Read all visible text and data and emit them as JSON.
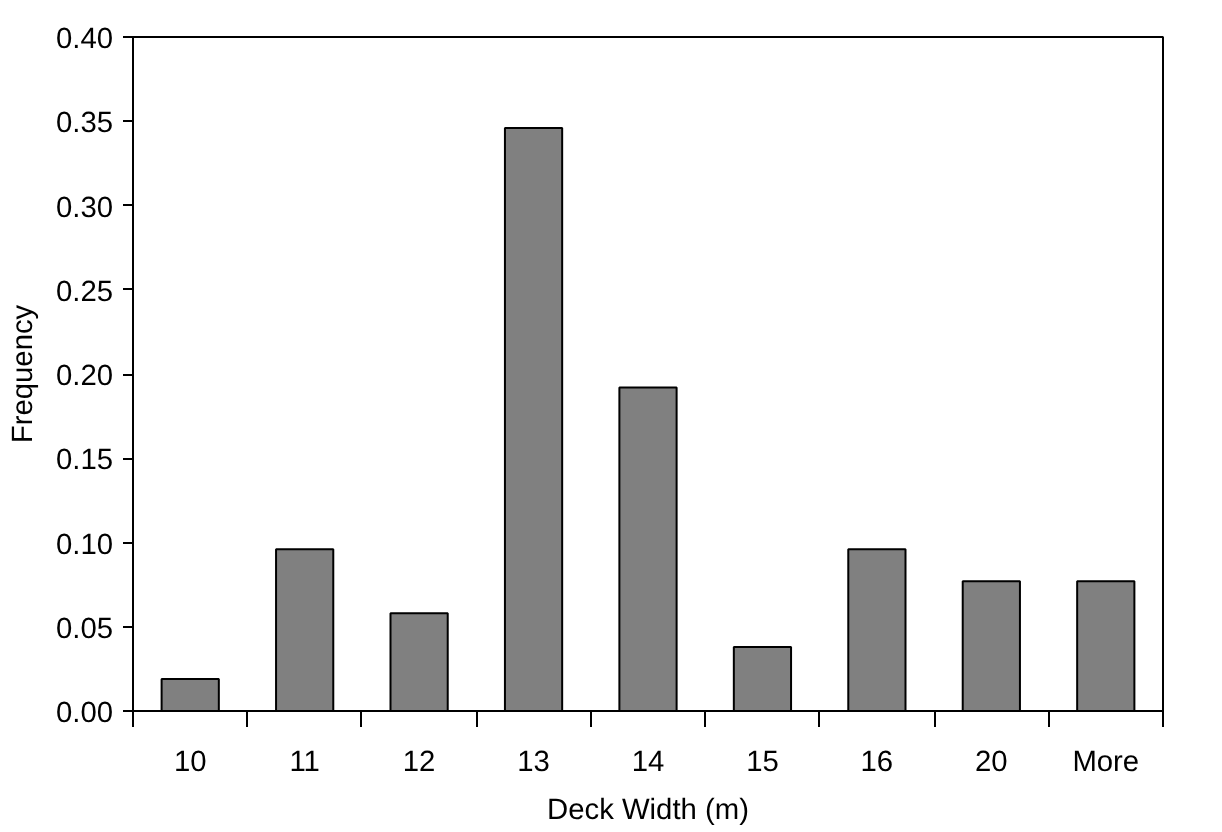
{
  "chart_data": {
    "type": "bar",
    "xlabel": "Deck Width (m)",
    "ylabel": "Frequency",
    "categories": [
      "10",
      "11",
      "12",
      "13",
      "14",
      "15",
      "16",
      "20",
      "More"
    ],
    "values": [
      0.019,
      0.096,
      0.058,
      0.346,
      0.192,
      0.038,
      0.096,
      0.077,
      0.077
    ],
    "color": "#808080",
    "ylim": [
      0,
      0.4
    ],
    "yticks": [
      {
        "value": 0,
        "label": "0.00"
      },
      {
        "value": 0.05,
        "label": "0.05"
      },
      {
        "value": 0.1,
        "label": "0.10"
      },
      {
        "value": 0.15,
        "label": "0.15"
      },
      {
        "value": 0.2,
        "label": "0.20"
      },
      {
        "value": 0.25,
        "label": "0.25"
      },
      {
        "value": 0.3,
        "label": "0.30"
      },
      {
        "value": 0.35,
        "label": "0.35"
      },
      {
        "value": 0.4,
        "label": "0.40"
      }
    ],
    "grid": false
  }
}
